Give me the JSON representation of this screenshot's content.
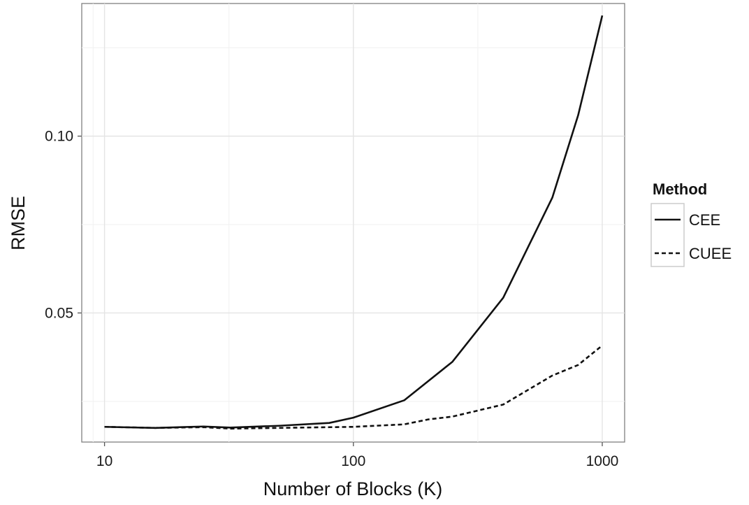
{
  "chart_data": {
    "type": "line",
    "xlabel": "Number of Blocks (K)",
    "ylabel": "RMSE",
    "x_scale": "log",
    "xlim": [
      8.1,
      1230
    ],
    "ylim": [
      0.0135,
      0.1375
    ],
    "x_ticks": [
      10,
      100,
      1000
    ],
    "x_tick_labels": [
      "10",
      "100",
      "1000"
    ],
    "y_ticks": [
      0.05,
      0.1
    ],
    "y_tick_labels": [
      "0.05",
      "0.10"
    ],
    "grid": true,
    "legend": {
      "title": "Method",
      "position": "right"
    },
    "series": [
      {
        "name": "CEE",
        "line_style": "solid",
        "color": "#111111",
        "points": [
          [
            10,
            0.0178
          ],
          [
            16,
            0.0175
          ],
          [
            25,
            0.0179
          ],
          [
            32,
            0.0176
          ],
          [
            50,
            0.0181
          ],
          [
            80,
            0.0189
          ],
          [
            100,
            0.0204
          ],
          [
            160,
            0.0253
          ],
          [
            250,
            0.0362
          ],
          [
            400,
            0.0543
          ],
          [
            630,
            0.0826
          ],
          [
            800,
            0.1059
          ],
          [
            1000,
            0.1341
          ]
        ]
      },
      {
        "name": "CUEE",
        "line_style": "dashed",
        "color": "#111111",
        "points": [
          [
            10,
            0.0178
          ],
          [
            16,
            0.0175
          ],
          [
            25,
            0.0177
          ],
          [
            32,
            0.0173
          ],
          [
            50,
            0.0175
          ],
          [
            80,
            0.0177
          ],
          [
            100,
            0.0178
          ],
          [
            160,
            0.0185
          ],
          [
            200,
            0.0199
          ],
          [
            250,
            0.0207
          ],
          [
            400,
            0.0241
          ],
          [
            630,
            0.0323
          ],
          [
            800,
            0.0353
          ],
          [
            1000,
            0.0408
          ]
        ]
      }
    ]
  }
}
